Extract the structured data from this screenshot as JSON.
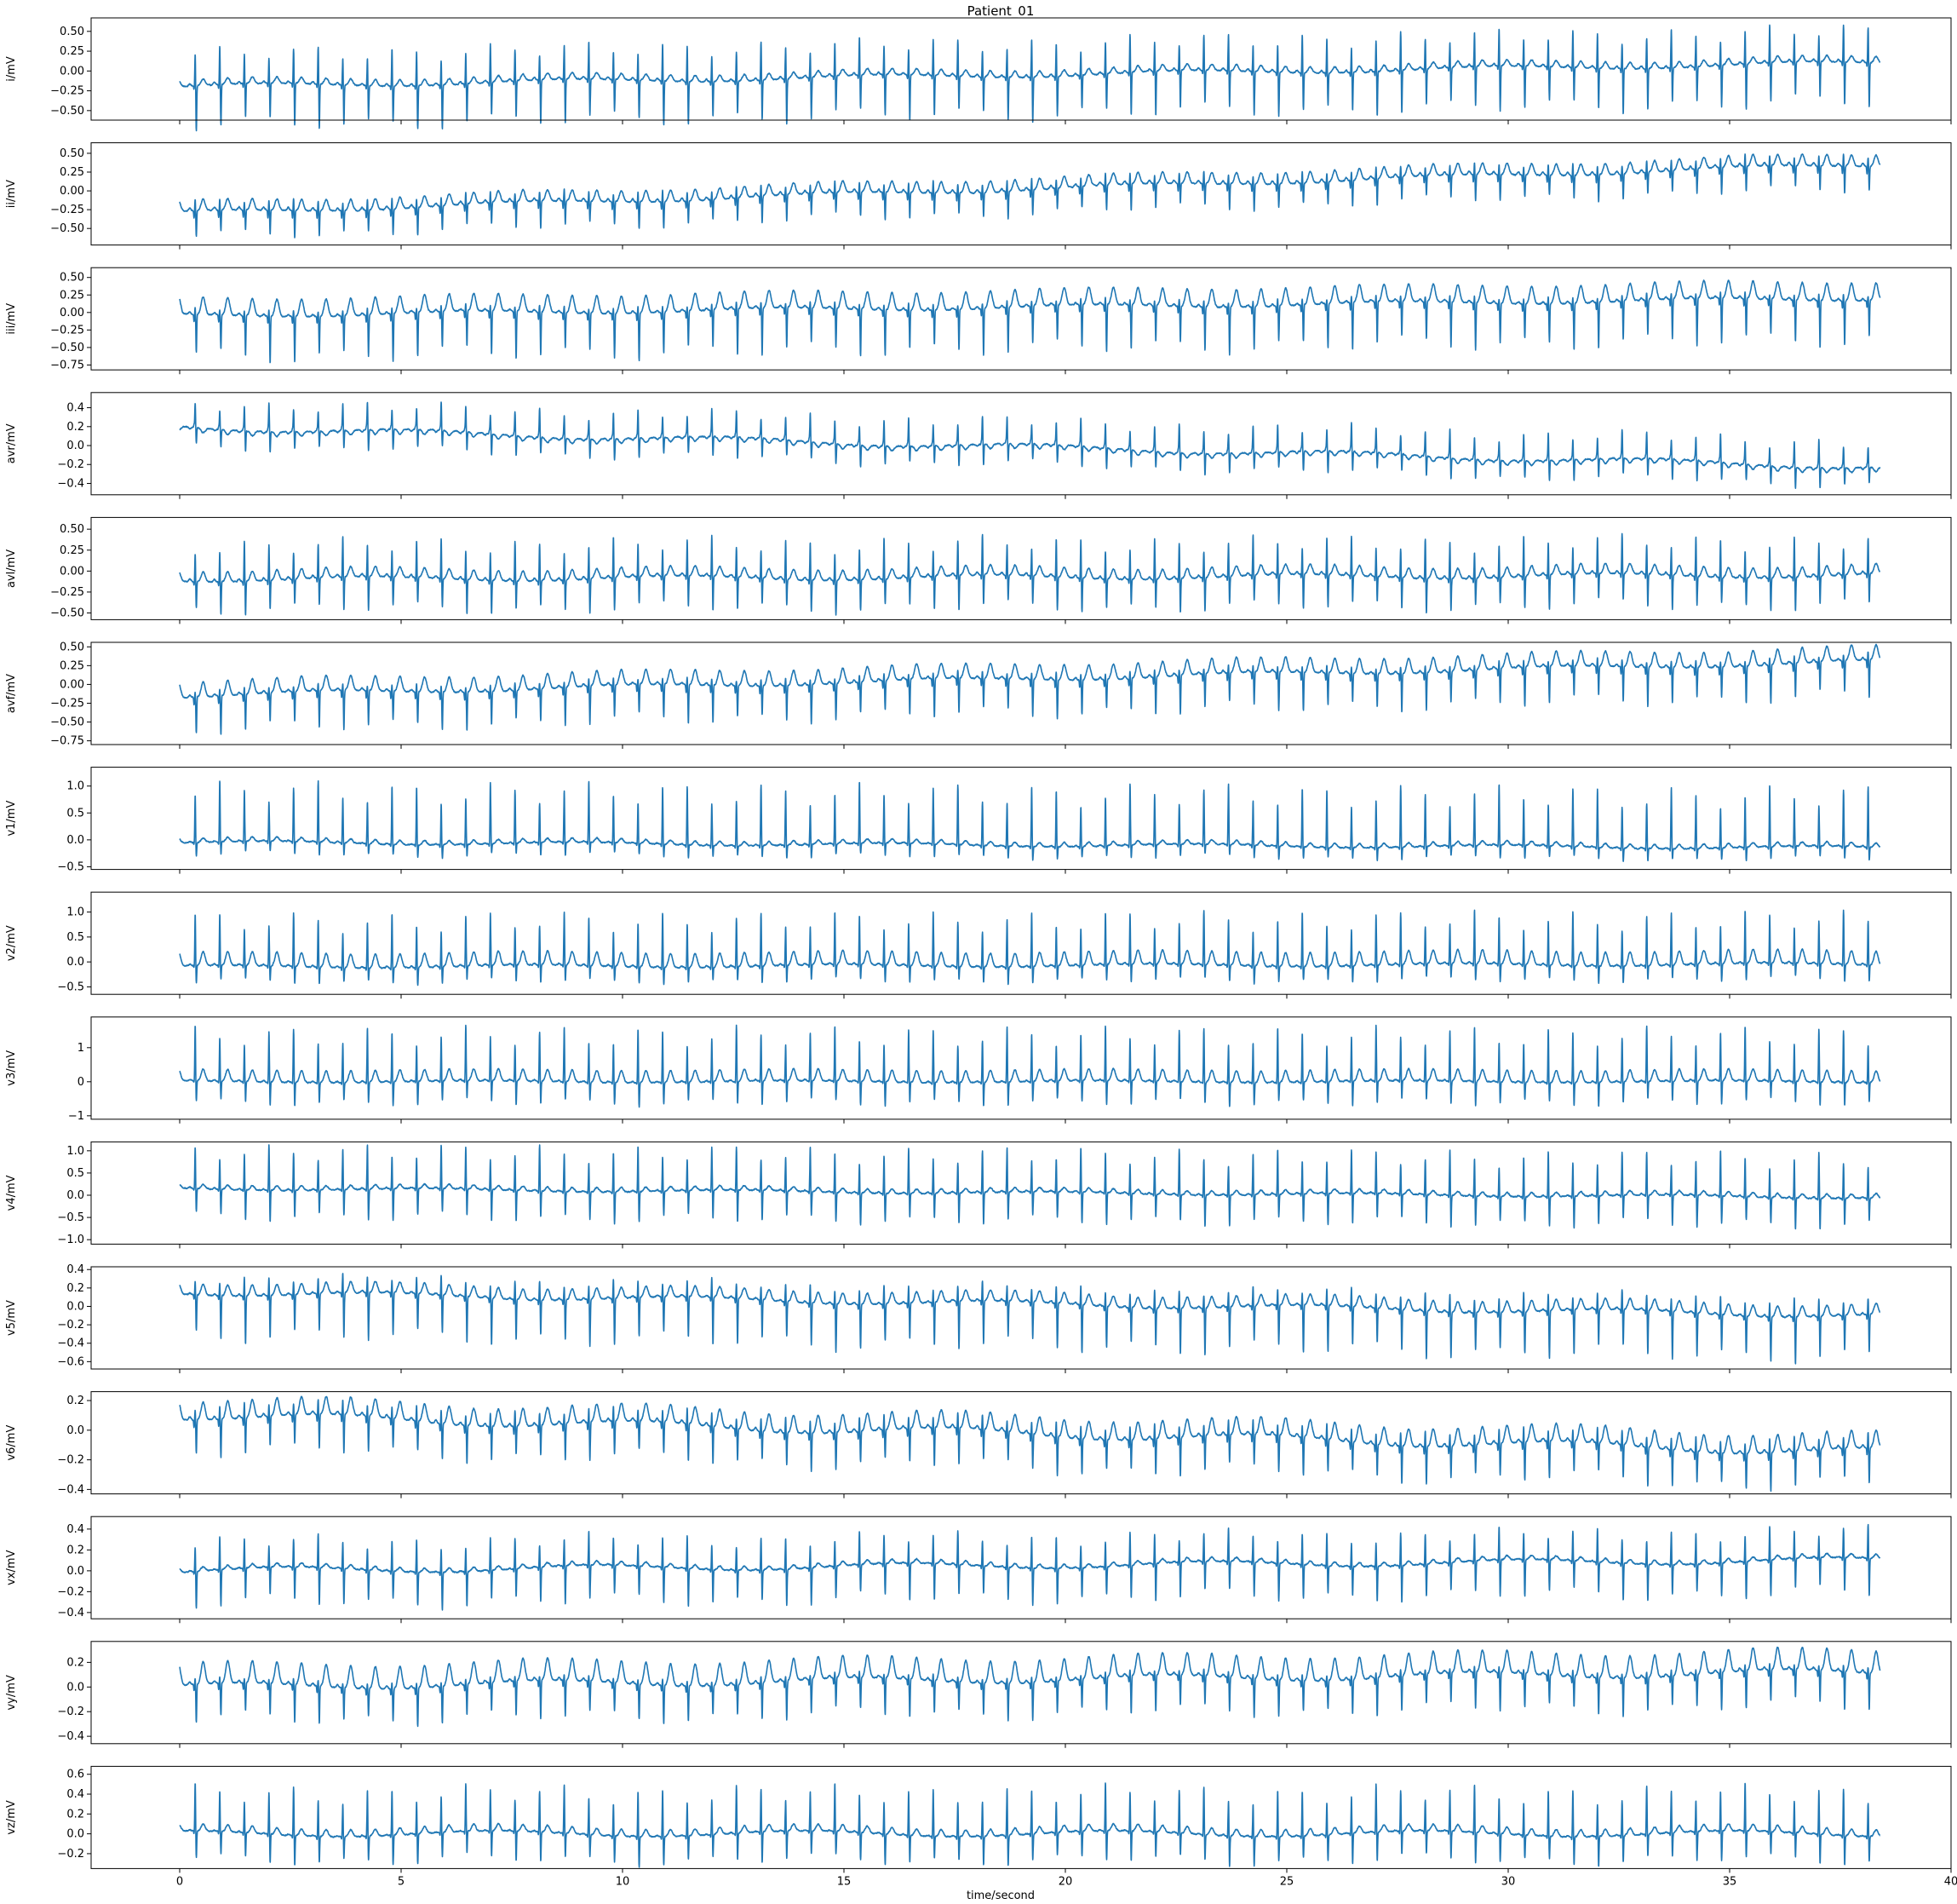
{
  "chart_data": {
    "type": "line",
    "title": "Patient_01",
    "xlabel": "time/second",
    "xlim": [
      -2,
      40
    ],
    "x_ticks": [
      0,
      5,
      10,
      15,
      20,
      25,
      30,
      35,
      40
    ],
    "x_tick_labels": [
      "0",
      "5",
      "10",
      "15",
      "20",
      "25",
      "30",
      "35",
      "40"
    ],
    "x_range": [
      0,
      38.4
    ],
    "heart_rate_bpm": 108,
    "grid": false,
    "color": "#1f77b4",
    "panels": [
      {
        "name": "i",
        "ylabel": "i/mV",
        "ylim": [
          -0.62,
          0.67
        ],
        "y_ticks": [
          -0.5,
          -0.25,
          0,
          0.25,
          0.5
        ],
        "y_tick_labels": [
          "−0.50",
          "−0.25",
          "0.00",
          "0.25",
          "0.50"
        ],
        "r_peak": 0.45,
        "s_trough": -0.55,
        "q": -0.05,
        "t_wave": 0.08,
        "p_wave": 0.03,
        "baseline_start": -0.2,
        "baseline_end": 0.1
      },
      {
        "name": "ii",
        "ylabel": "ii/mV",
        "ylim": [
          -0.72,
          0.64
        ],
        "y_ticks": [
          -0.5,
          -0.25,
          0,
          0.25,
          0.5
        ],
        "y_tick_labels": [
          "−0.50",
          "−0.25",
          "0.00",
          "0.25",
          "0.50"
        ],
        "r_peak": 0.15,
        "s_trough": -0.35,
        "q": -0.1,
        "t_wave": 0.15,
        "p_wave": 0.04,
        "baseline_start": -0.3,
        "baseline_end": 0.35
      },
      {
        "name": "iii",
        "ylabel": "iii/mV",
        "ylim": [
          -0.82,
          0.64
        ],
        "y_ticks": [
          -0.75,
          -0.5,
          -0.25,
          0,
          0.25,
          0.5
        ],
        "y_tick_labels": [
          "−0.75",
          "−0.50",
          "−0.25",
          "0.00",
          "0.25",
          "0.50"
        ],
        "r_peak": 0.1,
        "s_trough": -0.65,
        "q": -0.1,
        "t_wave": 0.25,
        "p_wave": 0.03,
        "baseline_start": -0.05,
        "baseline_end": 0.2
      },
      {
        "name": "avr",
        "ylabel": "avr/mV",
        "ylim": [
          -0.52,
          0.56
        ],
        "y_ticks": [
          -0.4,
          -0.2,
          0,
          0.2,
          0.4
        ],
        "y_tick_labels": [
          "−0.4",
          "−0.2",
          "0.0",
          "0.2",
          "0.4"
        ],
        "r_peak": 0.28,
        "s_trough": -0.22,
        "q": 0.03,
        "t_wave": -0.05,
        "p_wave": -0.02,
        "baseline_start": 0.2,
        "baseline_end": -0.22
      },
      {
        "name": "avl",
        "ylabel": "avl/mV",
        "ylim": [
          -0.58,
          0.64
        ],
        "y_ticks": [
          -0.5,
          -0.25,
          0,
          0.25,
          0.5
        ],
        "y_tick_labels": [
          "−0.50",
          "−0.25",
          "0.00",
          "0.25",
          "0.50"
        ],
        "r_peak": 0.45,
        "s_trough": -0.4,
        "q": -0.05,
        "t_wave": 0.12,
        "p_wave": 0.03,
        "baseline_start": -0.1,
        "baseline_end": -0.05
      },
      {
        "name": "avf",
        "ylabel": "avf/mV",
        "ylim": [
          -0.8,
          0.56
        ],
        "y_ticks": [
          -0.75,
          -0.5,
          -0.25,
          0,
          0.25,
          0.5
        ],
        "y_tick_labels": [
          "−0.75",
          "−0.50",
          "−0.25",
          "0.00",
          "0.25",
          "0.50"
        ],
        "r_peak": 0.1,
        "s_trough": -0.5,
        "q": -0.1,
        "t_wave": 0.2,
        "p_wave": 0.03,
        "baseline_start": -0.15,
        "baseline_end": 0.3
      },
      {
        "name": "v1",
        "ylabel": "v1/mV",
        "ylim": [
          -0.55,
          1.35
        ],
        "y_ticks": [
          -0.5,
          0,
          0.5,
          1.0
        ],
        "y_tick_labels": [
          "−0.5",
          "0.0",
          "0.5",
          "1.0"
        ],
        "r_peak": 1.05,
        "s_trough": -0.25,
        "q": -0.05,
        "t_wave": 0.08,
        "p_wave": 0.02,
        "baseline_start": -0.05,
        "baseline_end": -0.15
      },
      {
        "name": "v2",
        "ylabel": "v2/mV",
        "ylim": [
          -0.65,
          1.4
        ],
        "y_ticks": [
          -0.5,
          0,
          0.5,
          1.0
        ],
        "y_tick_labels": [
          "−0.5",
          "0.0",
          "0.5",
          "1.0"
        ],
        "r_peak": 1.0,
        "s_trough": -0.35,
        "q": -0.05,
        "t_wave": 0.28,
        "p_wave": 0.03,
        "baseline_start": -0.1,
        "baseline_end": -0.05
      },
      {
        "name": "v3",
        "ylabel": "v3/mV",
        "ylim": [
          -1.1,
          1.9
        ],
        "y_ticks": [
          -1,
          0,
          1
        ],
        "y_tick_labels": [
          "−1",
          "0",
          "1"
        ],
        "r_peak": 1.5,
        "s_trough": -0.7,
        "q": -0.05,
        "t_wave": 0.35,
        "p_wave": 0.04,
        "baseline_start": 0.0,
        "baseline_end": 0.0
      },
      {
        "name": "v4",
        "ylabel": "v4/mV",
        "ylim": [
          -1.1,
          1.2
        ],
        "y_ticks": [
          -1.0,
          -0.5,
          0,
          0.5,
          1.0
        ],
        "y_tick_labels": [
          "−1.0",
          "−0.5",
          "0.0",
          "0.5",
          "1.0"
        ],
        "r_peak": 0.95,
        "s_trough": -0.7,
        "q": -0.05,
        "t_wave": 0.1,
        "p_wave": 0.03,
        "baseline_start": 0.15,
        "baseline_end": -0.05
      },
      {
        "name": "v5",
        "ylabel": "v5/mV",
        "ylim": [
          -0.68,
          0.43
        ],
        "y_ticks": [
          -0.6,
          -0.4,
          -0.2,
          0,
          0.2,
          0.4
        ],
        "y_tick_labels": [
          "−0.6",
          "−0.4",
          "−0.2",
          "0.0",
          "0.2",
          "0.4"
        ],
        "r_peak": 0.2,
        "s_trough": -0.5,
        "q": -0.05,
        "t_wave": 0.12,
        "p_wave": 0.02,
        "baseline_start": 0.15,
        "baseline_end": -0.1
      },
      {
        "name": "v6",
        "ylabel": "v6/mV",
        "ylim": [
          -0.43,
          0.26
        ],
        "y_ticks": [
          -0.4,
          -0.2,
          0,
          0.2
        ],
        "y_tick_labels": [
          "−0.4",
          "−0.2",
          "0.0",
          "0.2"
        ],
        "r_peak": 0.1,
        "s_trough": -0.25,
        "q": -0.05,
        "t_wave": 0.12,
        "p_wave": 0.02,
        "baseline_start": 0.1,
        "baseline_end": -0.15
      },
      {
        "name": "vx",
        "ylabel": "vx/mV",
        "ylim": [
          -0.46,
          0.52
        ],
        "y_ticks": [
          -0.4,
          -0.2,
          0,
          0.2,
          0.4
        ],
        "y_tick_labels": [
          "−0.4",
          "−0.2",
          "0.0",
          "0.2",
          "0.4"
        ],
        "r_peak": 0.3,
        "s_trough": -0.35,
        "q": -0.03,
        "t_wave": 0.04,
        "p_wave": 0.01,
        "baseline_start": 0.0,
        "baseline_end": 0.1
      },
      {
        "name": "vy",
        "ylabel": "vy/mV",
        "ylim": [
          -0.46,
          0.37
        ],
        "y_ticks": [
          -0.4,
          -0.2,
          0,
          0.2
        ],
        "y_tick_labels": [
          "−0.4",
          "−0.2",
          "0.0",
          "0.2"
        ],
        "r_peak": 0.05,
        "s_trough": -0.3,
        "q": -0.05,
        "t_wave": 0.18,
        "p_wave": 0.02,
        "baseline_start": 0.0,
        "baseline_end": 0.12
      },
      {
        "name": "vz",
        "ylabel": "vz/mV",
        "ylim": [
          -0.35,
          0.68
        ],
        "y_ticks": [
          -0.2,
          0,
          0.2,
          0.4,
          0.6
        ],
        "y_tick_labels": [
          "−0.2",
          "0.0",
          "0.2",
          "0.4",
          "0.6"
        ],
        "r_peak": 0.45,
        "s_trough": -0.3,
        "q": -0.03,
        "t_wave": 0.07,
        "p_wave": 0.01,
        "baseline_start": 0.0,
        "baseline_end": 0.0
      }
    ]
  }
}
